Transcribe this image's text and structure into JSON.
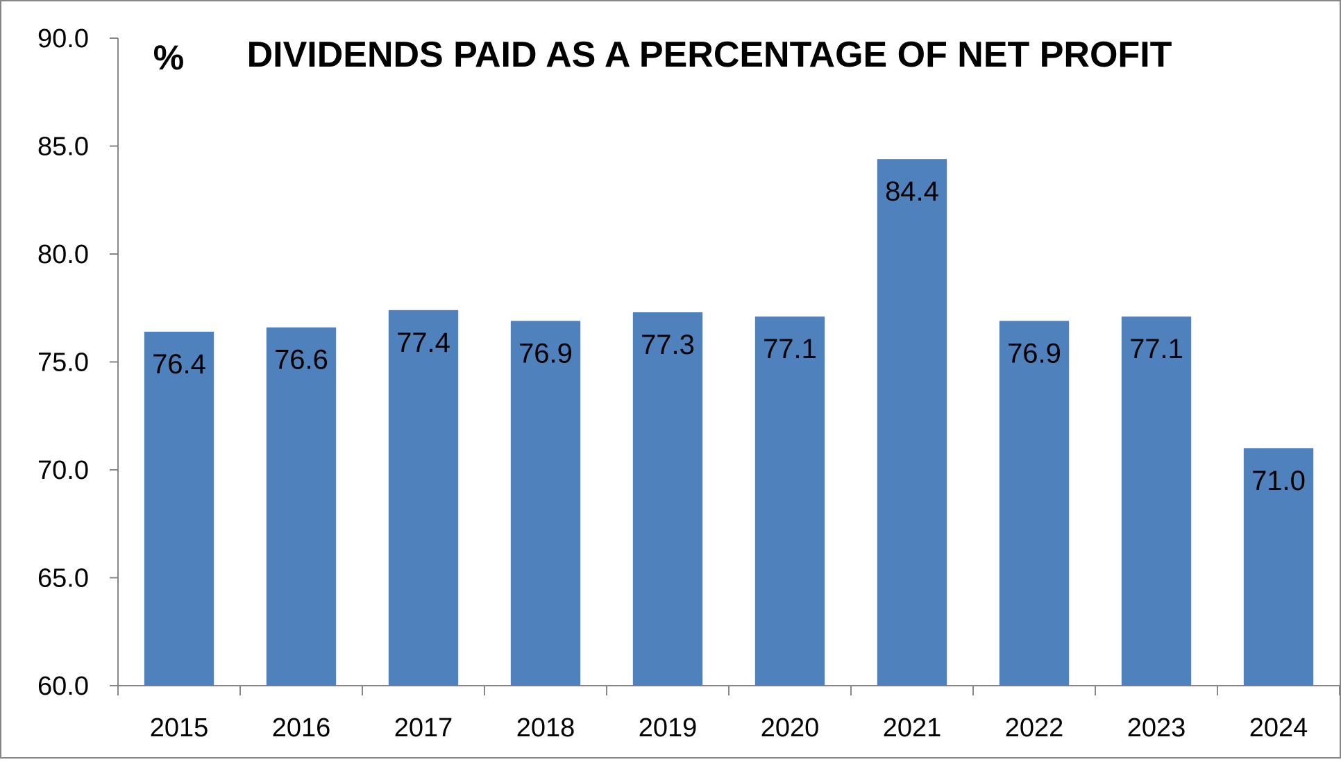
{
  "chart_data": {
    "type": "bar",
    "title": "DIVIDENDS PAID AS A PERCENTAGE OF NET PROFIT",
    "ylabel": "%",
    "xlabel": "",
    "categories": [
      "2015",
      "2016",
      "2017",
      "2018",
      "2019",
      "2020",
      "2021",
      "2022",
      "2023",
      "2024"
    ],
    "values": [
      76.4,
      76.6,
      77.4,
      76.9,
      77.3,
      77.1,
      84.4,
      76.9,
      77.1,
      71.0
    ],
    "data_labels": [
      "76.4",
      "76.6",
      "77.4",
      "76.9",
      "77.3",
      "77.1",
      "84.4",
      "76.9",
      "77.1",
      "71.0"
    ],
    "ylim": [
      60,
      90
    ],
    "yticks": [
      "60.0",
      "65.0",
      "70.0",
      "75.0",
      "80.0",
      "85.0",
      "90.0"
    ],
    "grid": false,
    "legend": "none",
    "colors": {
      "bar": "#4F81BD",
      "axis": "#868686",
      "frame": "#868686",
      "text": "#000000"
    }
  }
}
